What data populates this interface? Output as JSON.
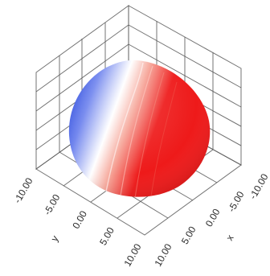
{
  "chart_data": {
    "type": "surface",
    "title": "",
    "xlabel": "x",
    "ylabel": "y",
    "x_ticks": [
      "-10.00",
      "-5.00",
      "0.00",
      "5.00",
      "10.00"
    ],
    "y_ticks": [
      "-10.00",
      "-5.00",
      "0.00",
      "5.00",
      "10.00"
    ],
    "xlim": [
      -10,
      10
    ],
    "ylim": [
      -10,
      10
    ],
    "zlim": [
      -10,
      10
    ],
    "grid": true,
    "series": [
      {
        "shape": "sphere",
        "center": [
          0,
          0,
          0
        ],
        "radius": 7.5,
        "colormap": [
          "#1f3fd9",
          "#ffffff",
          "#ee1a1a"
        ]
      }
    ]
  }
}
